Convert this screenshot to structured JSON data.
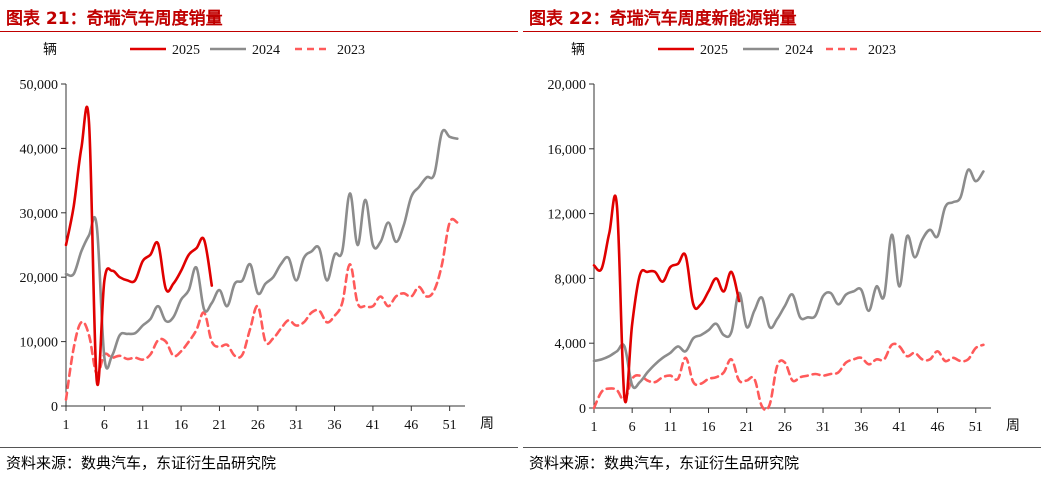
{
  "panels": [
    {
      "title": "图表 21：奇瑞汽车周度销量",
      "source": "资料来源：数典汽车，东证衍生品研究院",
      "chart_data": {
        "type": "line",
        "title": "奇瑞汽车周度销量",
        "ylabel": "辆",
        "xlabel": "周",
        "ylim": [
          0,
          50000
        ],
        "yticks": [
          0,
          10000,
          20000,
          30000,
          40000,
          50000
        ],
        "ytick_labels": [
          "0",
          "10,000",
          "20,000",
          "30,000",
          "40,000",
          "50,000"
        ],
        "xlim": [
          1,
          53
        ],
        "xticks": [
          1,
          6,
          11,
          16,
          21,
          26,
          31,
          36,
          41,
          46,
          51
        ],
        "legend": "top",
        "series": [
          {
            "name": "2025",
            "color": "#e00000",
            "dash": "solid",
            "x": [
              1,
              2,
              3,
              4,
              5,
              6,
              7,
              8,
              9,
              10,
              11,
              12,
              13,
              14,
              15,
              16,
              17,
              18,
              19,
              20
            ],
            "values": [
              25000,
              31000,
              40000,
              44000,
              4000,
              19500,
              21000,
              20000,
              19500,
              19500,
              22500,
              23500,
              25200,
              18200,
              19000,
              21000,
              23500,
              24500,
              25800,
              18700
            ]
          },
          {
            "name": "2024",
            "color": "#8c8c8c",
            "dash": "solid",
            "x": [
              1,
              2,
              3,
              4,
              5,
              6,
              7,
              8,
              9,
              10,
              11,
              12,
              13,
              14,
              15,
              16,
              17,
              18,
              19,
              20,
              21,
              22,
              23,
              24,
              25,
              26,
              27,
              28,
              29,
              30,
              31,
              32,
              33,
              34,
              35,
              36,
              37,
              38,
              39,
              40,
              41,
              42,
              43,
              44,
              45,
              46,
              47,
              48,
              49,
              50,
              51,
              52
            ],
            "values": [
              20500,
              20500,
              24000,
              26500,
              28000,
              7500,
              7800,
              11000,
              11200,
              11300,
              12500,
              13500,
              15500,
              13200,
              13800,
              16500,
              18000,
              21500,
              15000,
              16000,
              18000,
              15500,
              19000,
              19500,
              22000,
              17500,
              19000,
              20000,
              22000,
              23000,
              19500,
              23000,
              24000,
              24500,
              19500,
              23500,
              24000,
              33000,
              25000,
              32000,
              25000,
              25500,
              28500,
              25500,
              28000,
              32500,
              34000,
              35500,
              36000,
              42500,
              41800,
              41500
            ]
          },
          {
            "name": "2023",
            "color": "#ff5a5a",
            "dash": "dashed",
            "x": [
              1,
              2,
              3,
              4,
              5,
              6,
              7,
              8,
              9,
              10,
              11,
              12,
              13,
              14,
              15,
              16,
              17,
              18,
              19,
              20,
              21,
              22,
              23,
              24,
              25,
              26,
              27,
              28,
              29,
              30,
              31,
              32,
              33,
              34,
              35,
              36,
              37,
              38,
              39,
              40,
              41,
              42,
              43,
              44,
              45,
              46,
              47,
              48,
              49,
              50,
              51,
              52
            ],
            "values": [
              1000,
              9000,
              13000,
              11000,
              5000,
              8000,
              7500,
              7800,
              7300,
              7500,
              7200,
              8000,
              10200,
              10000,
              7800,
              8500,
              10000,
              11800,
              14500,
              10000,
              9200,
              9500,
              7800,
              8000,
              12000,
              15500,
              10000,
              10500,
              12000,
              13300,
              12500,
              13000,
              14500,
              14800,
              13000,
              14000,
              16000,
              22000,
              16000,
              15500,
              15500,
              17000,
              15500,
              17000,
              17500,
              17000,
              18500,
              17000,
              18000,
              22000,
              28500,
              28500
            ]
          }
        ]
      }
    },
    {
      "title": "图表 22：奇瑞汽车周度新能源销量",
      "source": "资料来源：数典汽车，东证衍生品研究院",
      "chart_data": {
        "type": "line",
        "title": "奇瑞汽车周度新能源销量",
        "ylabel": "辆",
        "xlabel": "周",
        "ylim": [
          0,
          20000
        ],
        "yticks": [
          0,
          4000,
          8000,
          12000,
          16000,
          20000
        ],
        "ytick_labels": [
          "0",
          "4,000",
          "8,000",
          "12,000",
          "16,000",
          "20,000"
        ],
        "xlim": [
          1,
          53
        ],
        "xticks": [
          1,
          6,
          11,
          16,
          21,
          26,
          31,
          36,
          41,
          46,
          51
        ],
        "legend": "top",
        "series": [
          {
            "name": "2025",
            "color": "#e00000",
            "dash": "solid",
            "x": [
              1,
              2,
              3,
              4,
              5,
              6,
              7,
              8,
              9,
              10,
              11,
              12,
              13,
              14,
              15,
              16,
              17,
              18,
              19,
              20
            ],
            "values": [
              8800,
              8600,
              10800,
              12500,
              600,
              5200,
              8200,
              8400,
              8400,
              7800,
              8700,
              8900,
              9400,
              6400,
              6400,
              7200,
              8000,
              7200,
              8400,
              6600
            ]
          },
          {
            "name": "2024",
            "color": "#8c8c8c",
            "dash": "solid",
            "x": [
              1,
              2,
              3,
              4,
              5,
              6,
              7,
              8,
              9,
              10,
              11,
              12,
              13,
              14,
              15,
              16,
              17,
              18,
              19,
              20,
              21,
              22,
              23,
              24,
              25,
              26,
              27,
              28,
              29,
              30,
              31,
              32,
              33,
              34,
              35,
              36,
              37,
              38,
              39,
              40,
              41,
              42,
              43,
              44,
              45,
              46,
              47,
              48,
              49,
              50,
              51,
              52
            ],
            "values": [
              2900,
              3000,
              3200,
              3500,
              3800,
              1400,
              1600,
              2200,
              2700,
              3100,
              3400,
              3800,
              3500,
              4300,
              4500,
              4800,
              5200,
              4500,
              4700,
              7100,
              5000,
              6000,
              6800,
              5000,
              5500,
              6300,
              7000,
              5600,
              5600,
              5700,
              6900,
              7100,
              6400,
              7000,
              7200,
              7300,
              6000,
              7500,
              6900,
              10700,
              7500,
              10600,
              9300,
              10400,
              11000,
              10600,
              12400,
              12700,
              13000,
              14700,
              14000,
              14600
            ]
          },
          {
            "name": "2023",
            "color": "#ff5a5a",
            "dash": "dashed",
            "x": [
              1,
              2,
              3,
              4,
              5,
              6,
              7,
              8,
              9,
              10,
              11,
              12,
              13,
              14,
              15,
              16,
              17,
              18,
              19,
              20,
              21,
              22,
              23,
              24,
              25,
              26,
              27,
              28,
              29,
              30,
              31,
              32,
              33,
              34,
              35,
              36,
              37,
              38,
              39,
              40,
              41,
              42,
              43,
              44,
              45,
              46,
              47,
              48,
              49,
              50,
              51,
              52
            ],
            "values": [
              0,
              1000,
              1200,
              1100,
              500,
              1800,
              2000,
              1700,
              1600,
              1900,
              2000,
              1800,
              3100,
              1600,
              1500,
              1800,
              1900,
              2200,
              3000,
              1700,
              1700,
              1800,
              100,
              200,
              2600,
              2800,
              1700,
              1900,
              2000,
              2100,
              2000,
              2100,
              2200,
              2800,
              3000,
              3100,
              2700,
              3000,
              3000,
              3900,
              3800,
              3200,
              3400,
              3000,
              3000,
              3500,
              2900,
              3100,
              2900,
              3000,
              3700,
              3900
            ]
          }
        ]
      }
    }
  ]
}
